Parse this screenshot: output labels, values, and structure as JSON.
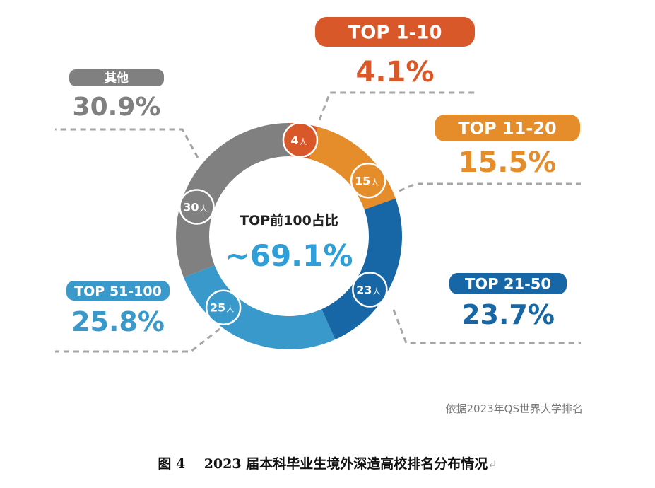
{
  "chart_data": {
    "type": "pie",
    "variant": "donut",
    "center_title": "TOP前100占比",
    "center_value": "~69.1%",
    "start_angle": "top",
    "direction": "clockwise",
    "unit_suffix": "人",
    "slices": [
      {
        "label": "TOP  1-10",
        "count": 4,
        "percent": "4.1%",
        "color": "#d9582a",
        "label_side": "top-right"
      },
      {
        "label": "TOP  11-20",
        "count": 15,
        "percent": "15.5%",
        "color": "#e58c2b",
        "label_side": "right-upper"
      },
      {
        "label": "TOP  21-50",
        "count": 23,
        "percent": "23.7%",
        "color": "#1767a6",
        "label_side": "right-lower"
      },
      {
        "label": "TOP  51-100",
        "count": 25,
        "percent": "25.8%",
        "color": "#3a99cb",
        "label_side": "left-lower"
      },
      {
        "label": "其他",
        "count": 30,
        "percent": "30.9%",
        "color": "#808080",
        "label_side": "left-upper"
      }
    ],
    "center_value_color": "#2e9fd8",
    "leader_line_color": "#a6a6a6"
  },
  "source_note": "依据2023年QS世界大学排名",
  "caption": {
    "figure_no": "图 4",
    "text": "2023 届本科毕业生境外深造高校排名分布情况",
    "return_mark": "↵"
  }
}
